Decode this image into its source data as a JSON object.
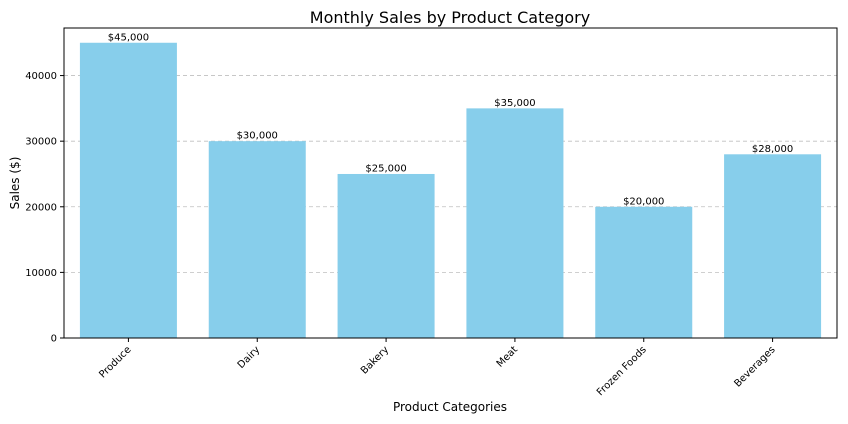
{
  "chart_data": {
    "type": "bar",
    "title": "Monthly Sales by Product Category",
    "xlabel": "Product Categories",
    "ylabel": "Sales ($)",
    "categories": [
      "Produce",
      "Dairy",
      "Bakery",
      "Meat",
      "Frozen Foods",
      "Beverages"
    ],
    "values": [
      45000,
      30000,
      25000,
      35000,
      20000,
      28000
    ],
    "value_labels": [
      "$45,000",
      "$30,000",
      "$25,000",
      "$35,000",
      "$20,000",
      "$28,000"
    ],
    "yticks": [
      0,
      10000,
      20000,
      30000,
      40000
    ],
    "ylim": [
      0,
      47250
    ],
    "grid": "y-dashed",
    "bar_color": "#87CEEB"
  }
}
